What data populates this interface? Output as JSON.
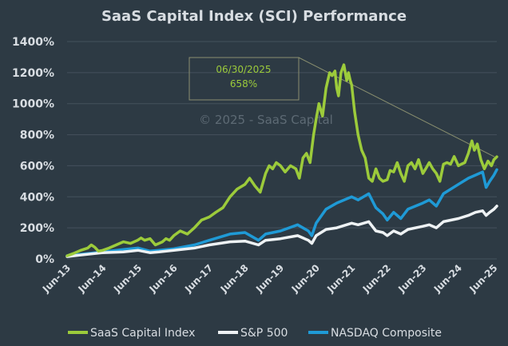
{
  "chart_data": {
    "type": "line",
    "title": "SaaS Capital Index (SCI) Performance",
    "watermark": "© 2025 - SaaS Capital",
    "ylim": [
      0,
      1400
    ],
    "yticks": [
      0,
      200,
      400,
      600,
      800,
      1000,
      1200,
      1400
    ],
    "ytick_labels": [
      "0%",
      "200%",
      "400%",
      "600%",
      "800%",
      "1000%",
      "1200%",
      "1400%"
    ],
    "xlim": [
      2013.42,
      2025.5
    ],
    "xticks": [
      2013.42,
      2014.42,
      2015.42,
      2016.42,
      2017.42,
      2018.42,
      2019.42,
      2020.42,
      2021.42,
      2022.42,
      2023.42,
      2024.42,
      2025.42
    ],
    "xtick_labels": [
      "Jun-13",
      "Jun-14",
      "Jun-15",
      "Jun-16",
      "Jun-17",
      "Jun-18",
      "Jun-19",
      "Jun-20",
      "Jun-21",
      "Jun-22",
      "Jun-23",
      "Jun-24",
      "Jun-25"
    ],
    "legend_position": "bottom",
    "callout": {
      "date": "06/30/2025",
      "value": "658%",
      "target_x": 2025.5,
      "target_y": 658
    },
    "series": [
      {
        "name": "SaaS Capital Index",
        "color": "#9ccb3b",
        "x": [
          2013.42,
          2013.6,
          2013.8,
          2014.0,
          2014.1,
          2014.2,
          2014.3,
          2014.42,
          2014.6,
          2014.8,
          2015.0,
          2015.2,
          2015.4,
          2015.5,
          2015.6,
          2015.75,
          2015.9,
          2016.0,
          2016.1,
          2016.2,
          2016.3,
          2016.42,
          2016.6,
          2016.8,
          2017.0,
          2017.2,
          2017.42,
          2017.6,
          2017.8,
          2018.0,
          2018.2,
          2018.42,
          2018.55,
          2018.7,
          2018.85,
          2019.0,
          2019.1,
          2019.2,
          2019.3,
          2019.42,
          2019.55,
          2019.7,
          2019.85,
          2019.95,
          2020.05,
          2020.15,
          2020.25,
          2020.35,
          2020.42,
          2020.5,
          2020.6,
          2020.7,
          2020.8,
          2020.87,
          2020.95,
          2021.0,
          2021.05,
          2021.12,
          2021.2,
          2021.28,
          2021.33,
          2021.38,
          2021.42,
          2021.5,
          2021.6,
          2021.7,
          2021.8,
          2021.9,
          2022.0,
          2022.1,
          2022.2,
          2022.3,
          2022.42,
          2022.5,
          2022.6,
          2022.7,
          2022.8,
          2022.9,
          2023.0,
          2023.1,
          2023.2,
          2023.3,
          2023.42,
          2023.5,
          2023.6,
          2023.7,
          2023.8,
          2023.9,
          2024.0,
          2024.1,
          2024.2,
          2024.3,
          2024.42,
          2024.5,
          2024.6,
          2024.7,
          2024.8,
          2024.87,
          2024.95,
          2025.05,
          2025.15,
          2025.25,
          2025.35,
          2025.42,
          2025.5
        ],
        "values": [
          20,
          35,
          55,
          70,
          90,
          75,
          50,
          55,
          70,
          90,
          110,
          100,
          120,
          135,
          120,
          130,
          90,
          100,
          110,
          130,
          120,
          150,
          180,
          160,
          200,
          250,
          270,
          300,
          330,
          400,
          450,
          480,
          520,
          470,
          430,
          550,
          600,
          580,
          620,
          600,
          560,
          600,
          580,
          520,
          650,
          680,
          620,
          800,
          900,
          1000,
          920,
          1100,
          1200,
          1180,
          1210,
          1100,
          1050,
          1200,
          1250,
          1150,
          1200,
          1150,
          1120,
          950,
          800,
          700,
          650,
          520,
          500,
          580,
          520,
          500,
          510,
          570,
          560,
          620,
          550,
          500,
          600,
          620,
          580,
          640,
          550,
          580,
          620,
          580,
          550,
          500,
          610,
          620,
          610,
          660,
          600,
          610,
          620,
          680,
          760,
          700,
          740,
          640,
          580,
          630,
          600,
          640,
          658
        ]
      },
      {
        "name": "S&P 500",
        "color": "#eef2f4",
        "x": [
          2013.42,
          2013.8,
          2014.42,
          2015.0,
          2015.42,
          2015.75,
          2016.0,
          2016.42,
          2017.0,
          2017.42,
          2018.0,
          2018.42,
          2018.8,
          2019.0,
          2019.42,
          2019.9,
          2020.2,
          2020.3,
          2020.42,
          2020.7,
          2021.0,
          2021.42,
          2021.6,
          2021.9,
          2022.1,
          2022.3,
          2022.42,
          2022.6,
          2022.8,
          2023.0,
          2023.42,
          2023.6,
          2023.8,
          2024.0,
          2024.42,
          2024.7,
          2024.9,
          2025.1,
          2025.2,
          2025.3,
          2025.42,
          2025.5
        ],
        "values": [
          15,
          25,
          40,
          45,
          55,
          40,
          45,
          55,
          70,
          90,
          110,
          115,
          90,
          120,
          130,
          150,
          120,
          100,
          150,
          190,
          200,
          230,
          220,
          240,
          180,
          170,
          150,
          180,
          160,
          190,
          210,
          220,
          200,
          240,
          260,
          280,
          300,
          310,
          280,
          300,
          320,
          340
        ]
      },
      {
        "name": "NASDAQ Composite",
        "color": "#1f9ad6",
        "x": [
          2013.42,
          2013.8,
          2014.42,
          2015.0,
          2015.42,
          2015.75,
          2016.0,
          2016.42,
          2017.0,
          2017.42,
          2018.0,
          2018.42,
          2018.8,
          2019.0,
          2019.42,
          2019.9,
          2020.2,
          2020.3,
          2020.42,
          2020.7,
          2021.0,
          2021.42,
          2021.6,
          2021.9,
          2022.1,
          2022.3,
          2022.42,
          2022.6,
          2022.8,
          2023.0,
          2023.42,
          2023.6,
          2023.8,
          2024.0,
          2024.42,
          2024.7,
          2024.9,
          2025.1,
          2025.2,
          2025.3,
          2025.42,
          2025.5
        ],
        "values": [
          20,
          30,
          45,
          60,
          70,
          50,
          55,
          65,
          90,
          120,
          160,
          170,
          120,
          160,
          180,
          220,
          180,
          150,
          230,
          320,
          360,
          400,
          380,
          420,
          330,
          290,
          250,
          300,
          260,
          320,
          360,
          380,
          340,
          420,
          480,
          520,
          540,
          560,
          460,
          500,
          540,
          575
        ]
      }
    ]
  }
}
